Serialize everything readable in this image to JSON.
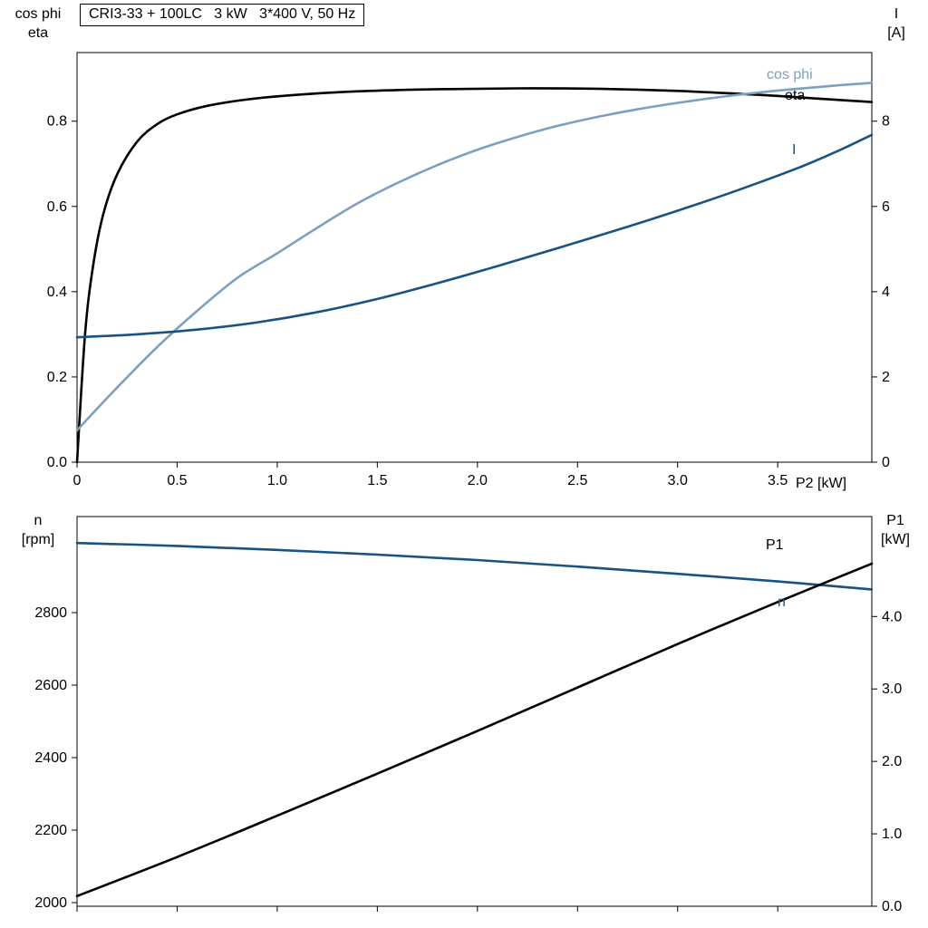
{
  "title": "CRI3-33 + 100LC   3 kW   3*400 V, 50 Hz",
  "palette": {
    "black": "#000000",
    "light_blue": "#7D9FC0",
    "dark_blue": "#1A5280"
  },
  "axis_titles": {
    "top_left_line1": "cos phi",
    "top_left_line2": "eta",
    "top_right_line1": "I",
    "top_right_line2": "[A]",
    "x_title": "P2 [kW]",
    "bottom_left_line1": "n",
    "bottom_left_line2": "[rpm]",
    "bottom_right_line1": "P1",
    "bottom_right_line2": "[kW]"
  },
  "chart_data": [
    {
      "id": "top",
      "type": "line",
      "title": "CRI3-33 + 100LC   3 kW   3*400 V, 50 Hz",
      "xlabel": "P2 [kW]",
      "ylabel_left": "cos phi / eta",
      "ylabel_right": "I [A]",
      "grid": false,
      "x": {
        "min": 0,
        "max": 3.97,
        "ticks": [
          0,
          0.5,
          1.0,
          1.5,
          2.0,
          2.5,
          3.0,
          3.5
        ],
        "tick_labels": [
          "0",
          "0.5",
          "1.0",
          "1.5",
          "2.0",
          "2.5",
          "3.0",
          "3.5"
        ],
        "show_labels": true
      },
      "y_left": {
        "min": 0,
        "max": 0.961,
        "ticks": [
          0,
          0.2,
          0.4,
          0.6,
          0.8
        ],
        "tick_labels": [
          "0.0",
          "0.2",
          "0.4",
          "0.6",
          "0.8"
        ]
      },
      "y_right": {
        "min": 0,
        "max": 9.61,
        "ticks": [
          0,
          2,
          4,
          6,
          8
        ],
        "tick_labels": [
          "0",
          "2",
          "4",
          "6",
          "8"
        ]
      },
      "series": [
        {
          "name": "eta",
          "label": "eta",
          "axis": "left",
          "color": "black",
          "points": [
            [
              0,
              0
            ],
            [
              0.04,
              0.3
            ],
            [
              0.08,
              0.46
            ],
            [
              0.13,
              0.58
            ],
            [
              0.2,
              0.675
            ],
            [
              0.3,
              0.752
            ],
            [
              0.4,
              0.793
            ],
            [
              0.5,
              0.816
            ],
            [
              0.65,
              0.836
            ],
            [
              0.85,
              0.851
            ],
            [
              1.1,
              0.862
            ],
            [
              1.4,
              0.87
            ],
            [
              1.8,
              0.875
            ],
            [
              2.2,
              0.877
            ],
            [
              2.6,
              0.876
            ],
            [
              3.0,
              0.871
            ],
            [
              3.4,
              0.862
            ],
            [
              3.7,
              0.853
            ],
            [
              3.97,
              0.845
            ]
          ]
        },
        {
          "name": "cos-phi",
          "label": "cos phi",
          "axis": "left",
          "color": "light_blue",
          "points": [
            [
              0,
              0.075
            ],
            [
              0.2,
              0.175
            ],
            [
              0.4,
              0.27
            ],
            [
              0.6,
              0.355
            ],
            [
              0.8,
              0.432
            ],
            [
              1.0,
              0.49
            ],
            [
              1.2,
              0.55
            ],
            [
              1.4,
              0.607
            ],
            [
              1.6,
              0.655
            ],
            [
              1.8,
              0.697
            ],
            [
              2.0,
              0.733
            ],
            [
              2.2,
              0.763
            ],
            [
              2.4,
              0.789
            ],
            [
              2.6,
              0.81
            ],
            [
              2.8,
              0.828
            ],
            [
              3.0,
              0.843
            ],
            [
              3.2,
              0.856
            ],
            [
              3.4,
              0.867
            ],
            [
              3.6,
              0.876
            ],
            [
              3.8,
              0.884
            ],
            [
              3.97,
              0.89
            ]
          ]
        },
        {
          "name": "current",
          "label": "I",
          "axis": "right",
          "color": "dark_blue",
          "points": [
            [
              0,
              2.93
            ],
            [
              0.3,
              3.0
            ],
            [
              0.6,
              3.11
            ],
            [
              0.9,
              3.28
            ],
            [
              1.2,
              3.52
            ],
            [
              1.5,
              3.83
            ],
            [
              1.8,
              4.2
            ],
            [
              2.1,
              4.6
            ],
            [
              2.4,
              5.02
            ],
            [
              2.7,
              5.45
            ],
            [
              3.0,
              5.9
            ],
            [
              3.3,
              6.38
            ],
            [
              3.6,
              6.9
            ],
            [
              3.8,
              7.3
            ],
            [
              3.97,
              7.68
            ]
          ]
        }
      ]
    },
    {
      "id": "bottom",
      "type": "line",
      "xlabel": "",
      "ylabel_left": "n [rpm]",
      "ylabel_right": "P1 [kW]",
      "grid": false,
      "x": {
        "min": 0,
        "max": 3.97,
        "ticks": [
          0,
          0.5,
          1.0,
          1.5,
          2.0,
          2.5,
          3.0,
          3.5
        ],
        "tick_labels": [
          "",
          "",
          "",
          "",
          "",
          "",
          "",
          ""
        ],
        "show_labels": false
      },
      "y_left": {
        "min": 1990,
        "max": 3065,
        "ticks": [
          2000,
          2200,
          2400,
          2600,
          2800
        ],
        "tick_labels": [
          "2000",
          "2200",
          "2400",
          "2600",
          "2800"
        ]
      },
      "y_right": {
        "min": 0,
        "max": 5.38,
        "ticks": [
          0,
          1,
          2,
          3,
          4
        ],
        "tick_labels": [
          "0.0",
          "1.0",
          "2.0",
          "3.0",
          "4.0"
        ]
      },
      "series": [
        {
          "name": "speed",
          "label": "n",
          "axis": "left",
          "color": "dark_blue",
          "points": [
            [
              0,
              2992
            ],
            [
              0.5,
              2984
            ],
            [
              1.0,
              2973
            ],
            [
              1.5,
              2960
            ],
            [
              2.0,
              2945
            ],
            [
              2.5,
              2927
            ],
            [
              3.0,
              2907
            ],
            [
              3.5,
              2886
            ],
            [
              3.97,
              2864
            ]
          ]
        },
        {
          "name": "p1",
          "label": "P1",
          "axis": "right",
          "color": "black",
          "points": [
            [
              0,
              0.14
            ],
            [
              0.5,
              0.68
            ],
            [
              1.0,
              1.25
            ],
            [
              1.5,
              1.83
            ],
            [
              2.0,
              2.42
            ],
            [
              2.5,
              3.02
            ],
            [
              3.0,
              3.62
            ],
            [
              3.5,
              4.2
            ],
            [
              3.97,
              4.73
            ]
          ]
        }
      ]
    }
  ]
}
